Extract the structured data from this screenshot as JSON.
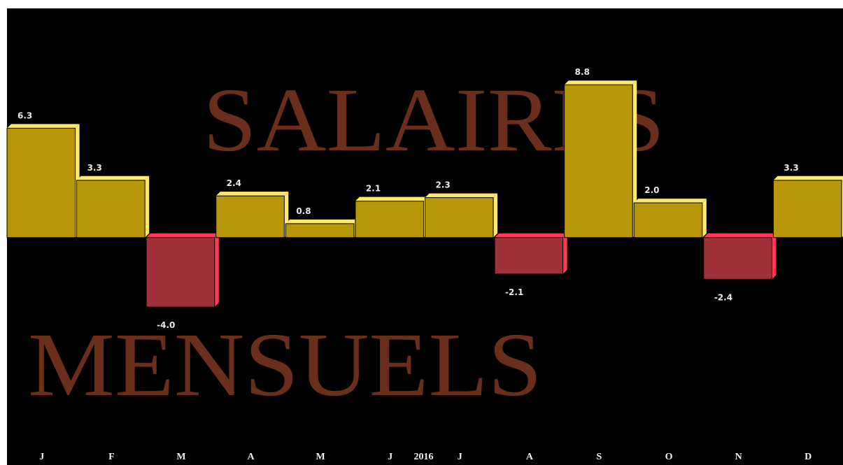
{
  "chart_data": {
    "type": "bar",
    "background_text": [
      "SALAIRES",
      "MENSUELS"
    ],
    "categories": [
      "J",
      "F",
      "M",
      "A",
      "M",
      "J",
      "J",
      "A",
      "S",
      "O",
      "N",
      "D"
    ],
    "x_label": "2016",
    "values": [
      6.3,
      3.3,
      -4.0,
      2.4,
      0.8,
      2.1,
      2.3,
      -2.1,
      8.8,
      2.0,
      -2.4,
      3.3
    ],
    "value_labels": [
      "6.3",
      "3.3",
      "-4.0",
      "2.4",
      "0.8",
      "2.1",
      "2.3",
      "-2.1",
      "8.8",
      "2.0",
      "-2.4",
      "3.3"
    ],
    "ylim": [
      -13.1,
      13.2
    ],
    "colors": {
      "positive": "#b8960a",
      "positive_edge": "#ffe870",
      "negative": "#a0303a",
      "negative_edge": "#ff3a58",
      "text": "#6b2e1a"
    }
  }
}
